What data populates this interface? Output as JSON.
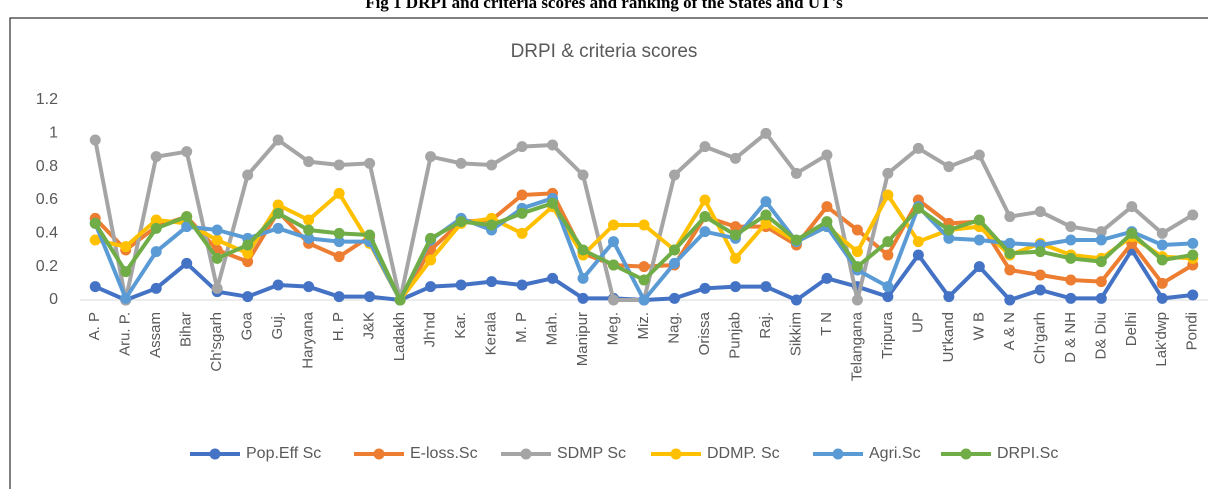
{
  "heading": "Fig 1 DRPI and criteria  scores and ranking of the States and UT's",
  "chart_data": {
    "type": "line",
    "title": "DRPI & criteria scores",
    "categories": [
      "A. P",
      "Aru. P.",
      "Assam",
      "Bihar",
      "Ch'sgarh",
      "Goa",
      "Guj.",
      "Haryana",
      "H. P",
      "J&K",
      "Ladakh",
      "Jh'nd",
      "Kar.",
      "Kerala",
      "M. P",
      "Mah.",
      "Manipur",
      "Meg.",
      "Miz.",
      "Nag.",
      "Orissa",
      "Punjab",
      "Raj.",
      "Sikkim",
      "T N",
      "Telangana",
      "Tripura",
      "UP",
      "Ut'kand",
      "W B",
      "A & N",
      "Ch'garh",
      "D & NH",
      "D& Diu",
      "Delhi",
      "Lak'dwp",
      "Pondi"
    ],
    "series": [
      {
        "name": "Pop.Eff Sc",
        "color": "#4472c4",
        "values": [
          0.08,
          0.0,
          0.07,
          0.22,
          0.05,
          0.02,
          0.09,
          0.08,
          0.02,
          0.02,
          0,
          0.08,
          0.09,
          0.11,
          0.09,
          0.13,
          0.01,
          0.01,
          0,
          0.01,
          0.07,
          0.08,
          0.08,
          0,
          0.13,
          0.08,
          0.02,
          0.27,
          0.02,
          0.2,
          0,
          0.06,
          0.01,
          0.01,
          0.3,
          0.01,
          0.03
        ]
      },
      {
        "name": "E-loss.Sc",
        "color": "#ed7d31",
        "values": [
          0.49,
          0.3,
          0.44,
          0.5,
          0.3,
          0.23,
          0.53,
          0.34,
          0.26,
          0.38,
          0,
          0.3,
          0.47,
          0.48,
          0.63,
          0.64,
          0.28,
          0.21,
          0.2,
          0.21,
          0.5,
          0.44,
          0.44,
          0.33,
          0.56,
          0.42,
          0.27,
          0.6,
          0.46,
          0.47,
          0.18,
          0.15,
          0.12,
          0.11,
          0.34,
          0.1,
          0.21
        ]
      },
      {
        "name": "SDMP Sc",
        "color": "#a5a5a5",
        "values": [
          0.96,
          0.0,
          0.86,
          0.89,
          0.07,
          0.75,
          0.96,
          0.83,
          0.81,
          0.82,
          0,
          0.86,
          0.82,
          0.81,
          0.92,
          0.93,
          0.75,
          0,
          0,
          0.75,
          0.92,
          0.85,
          1.0,
          0.76,
          0.87,
          0,
          0.76,
          0.91,
          0.8,
          0.87,
          0.5,
          0.53,
          0.44,
          0.41,
          0.56,
          0.4,
          0.51
        ]
      },
      {
        "name": "DDMP. Sc",
        "color": "#ffc000",
        "values": [
          0.36,
          0.32,
          0.48,
          0.46,
          0.36,
          0.28,
          0.57,
          0.48,
          0.64,
          0.34,
          0,
          0.24,
          0.46,
          0.49,
          0.4,
          0.56,
          0.27,
          0.45,
          0.45,
          0.3,
          0.6,
          0.25,
          0.46,
          0.35,
          0.44,
          0.29,
          0.63,
          0.35,
          0.42,
          0.44,
          0.27,
          0.34,
          0.27,
          0.25,
          0.38,
          0.26,
          0.25
        ]
      },
      {
        "name": "Agri.Sc",
        "color": "#5b9bd5",
        "values": [
          0.46,
          0.01,
          0.29,
          0.44,
          0.42,
          0.37,
          0.43,
          0.37,
          0.35,
          0.35,
          0,
          0.36,
          0.49,
          0.42,
          0.55,
          0.61,
          0.13,
          0.35,
          0,
          0.22,
          0.41,
          0.37,
          0.59,
          0.35,
          0.44,
          0.18,
          0.08,
          0.56,
          0.37,
          0.36,
          0.34,
          0.33,
          0.36,
          0.36,
          0.41,
          0.33,
          0.34
        ]
      },
      {
        "name": "DRPI.Sc",
        "color": "#70ad47",
        "values": [
          0.46,
          0.17,
          0.43,
          0.5,
          0.25,
          0.33,
          0.52,
          0.42,
          0.4,
          0.39,
          0,
          0.37,
          0.47,
          0.45,
          0.52,
          0.58,
          0.3,
          0.21,
          0.12,
          0.3,
          0.5,
          0.39,
          0.51,
          0.36,
          0.47,
          0.2,
          0.35,
          0.55,
          0.42,
          0.48,
          0.28,
          0.29,
          0.25,
          0.23,
          0.4,
          0.24,
          0.27
        ]
      }
    ],
    "ylim": [
      0,
      1.2
    ],
    "yticks": [
      0,
      0.2,
      0.4,
      0.6,
      0.8,
      1,
      1.2
    ],
    "grid": false,
    "legend": "bottom"
  }
}
